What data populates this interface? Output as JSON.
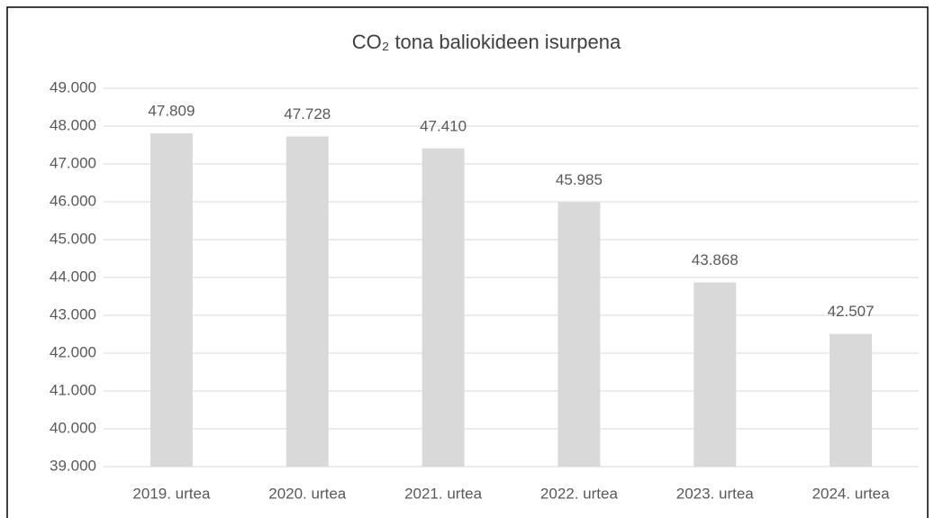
{
  "chart_data": {
    "type": "bar",
    "title": "CO₂ tona baliokideen isurpena",
    "categories": [
      "2019. urtea",
      "2020. urtea",
      "2021. urtea",
      "2022. urtea",
      "2023. urtea",
      "2024. urtea"
    ],
    "values": [
      47809,
      47728,
      47410,
      45985,
      43868,
      42507
    ],
    "value_labels": [
      "47.809",
      "47.728",
      "47.410",
      "45.985",
      "43.868",
      "42.507"
    ],
    "color": "#d9d9d9",
    "ylim": [
      39000,
      49000
    ],
    "yticks": [
      {
        "value": 39000,
        "label": "39.000"
      },
      {
        "value": 40000,
        "label": "40.000"
      },
      {
        "value": 41000,
        "label": "41.000"
      },
      {
        "value": 42000,
        "label": "42.000"
      },
      {
        "value": 43000,
        "label": "43.000"
      },
      {
        "value": 44000,
        "label": "44.000"
      },
      {
        "value": 45000,
        "label": "45.000"
      },
      {
        "value": 46000,
        "label": "46.000"
      },
      {
        "value": 47000,
        "label": "47.000"
      },
      {
        "value": 48000,
        "label": "48.000"
      },
      {
        "value": 49000,
        "label": "49.000"
      }
    ],
    "grid": true
  }
}
